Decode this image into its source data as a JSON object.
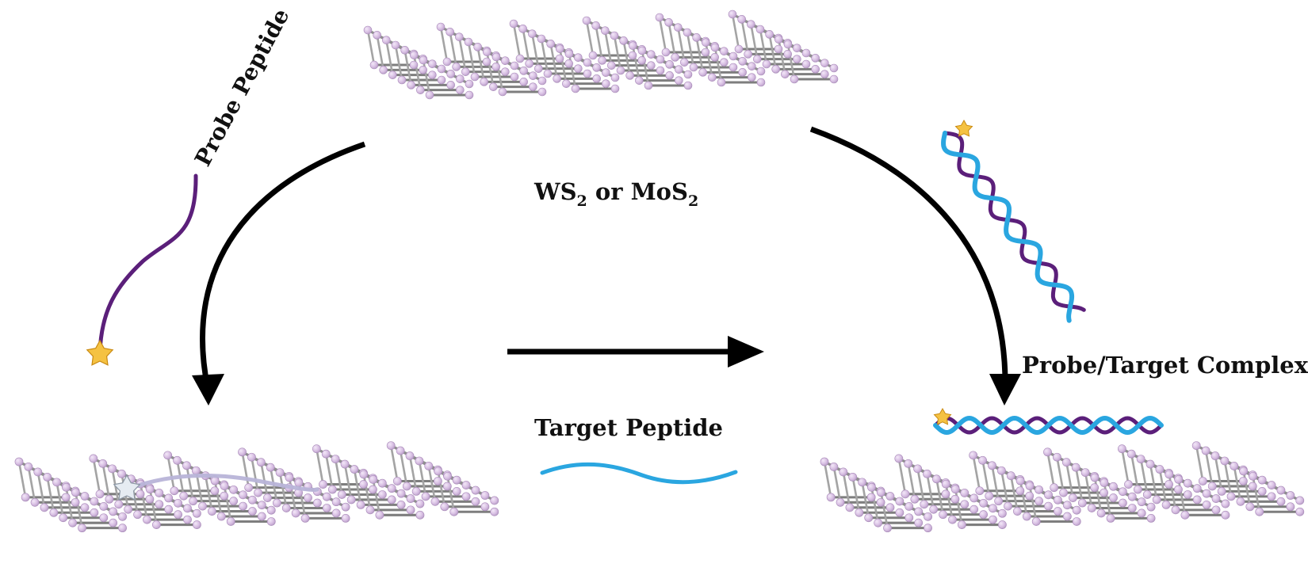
{
  "labels": {
    "material_main": "WS",
    "material_sub1": "2",
    "material_or": " or MoS",
    "material_sub2": "2",
    "probe": "Probe Peptide",
    "target": "Target Peptide",
    "complex": "Probe/Target Complex"
  },
  "colors": {
    "probe_strand": "#5b1f7a",
    "target_strand": "#2aa6e0",
    "quenched_probe": "#b8b4d8",
    "arrow": "#000000",
    "sheet_rod": "#8e8e8e",
    "sheet_atom": "#dcc4e6",
    "fluorophore_star": "#f5c242",
    "quenched_star": "#e6ecf2"
  },
  "icons": {
    "fluorophore": "star-icon",
    "nanosheet": "layered-nanosheet-icon"
  }
}
